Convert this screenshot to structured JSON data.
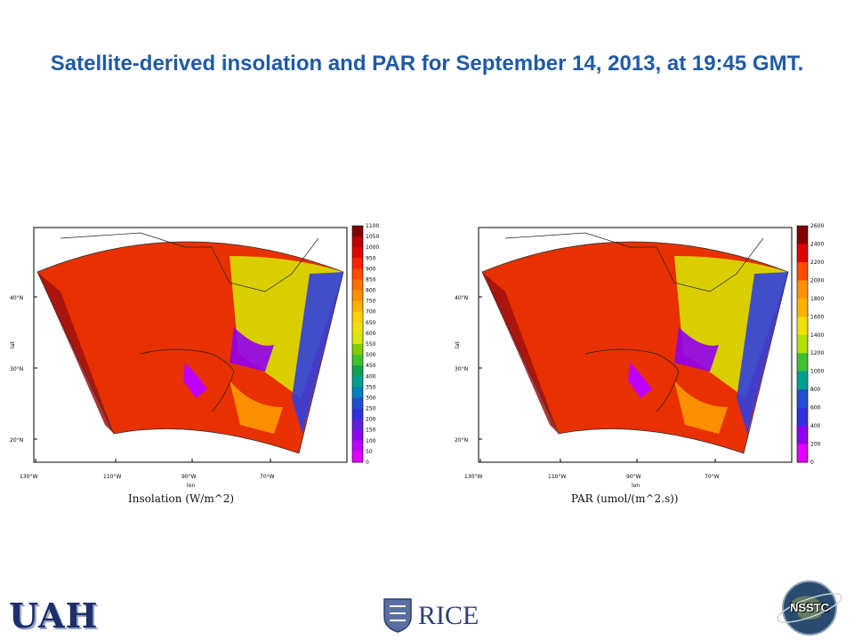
{
  "title": "Satellite-derived insolation and PAR for September 14, 2013, at 19:45 GMT.",
  "maps": [
    {
      "caption": "Insolation (W/m^2)",
      "ylabel": "lat",
      "xlabel": "lon",
      "lat_ticks": [
        "40°N",
        "30°N",
        "20°N"
      ],
      "lon_ticks": [
        "130°W",
        "110°W",
        "90°W",
        "70°W"
      ],
      "colorbar": [
        "1100",
        "1050",
        "1000",
        "950",
        "900",
        "850",
        "800",
        "750",
        "700",
        "650",
        "600",
        "550",
        "500",
        "450",
        "400",
        "350",
        "300",
        "250",
        "200",
        "150",
        "100",
        "50",
        "0"
      ]
    },
    {
      "caption": "PAR (umol/(m^2.s))",
      "ylabel": "lat",
      "xlabel": "lon",
      "lat_ticks": [
        "40°N",
        "30°N",
        "20°N"
      ],
      "lon_ticks": [
        "130°W",
        "110°W",
        "90°W",
        "70°W"
      ],
      "colorbar": [
        "2600",
        "2400",
        "2200",
        "2000",
        "1800",
        "1600",
        "1400",
        "1200",
        "1000",
        "800",
        "600",
        "400",
        "200",
        "0"
      ]
    }
  ],
  "colors": {
    "title": "#1f5aa6",
    "colormap": [
      "#800000",
      "#b80000",
      "#e00000",
      "#ff2000",
      "#ff4a00",
      "#ff7000",
      "#ff9000",
      "#ffb000",
      "#ffd000",
      "#f0e000",
      "#d8e800",
      "#b0e000",
      "#80d000",
      "#40c030",
      "#10a050",
      "#00a090",
      "#0080c0",
      "#2050d0",
      "#3030e0",
      "#6020e0",
      "#9000f0",
      "#c000ff",
      "#e000ff"
    ]
  },
  "logos": {
    "uah": "UAH",
    "rice": "RICE",
    "nsstc": "NSSTC"
  }
}
